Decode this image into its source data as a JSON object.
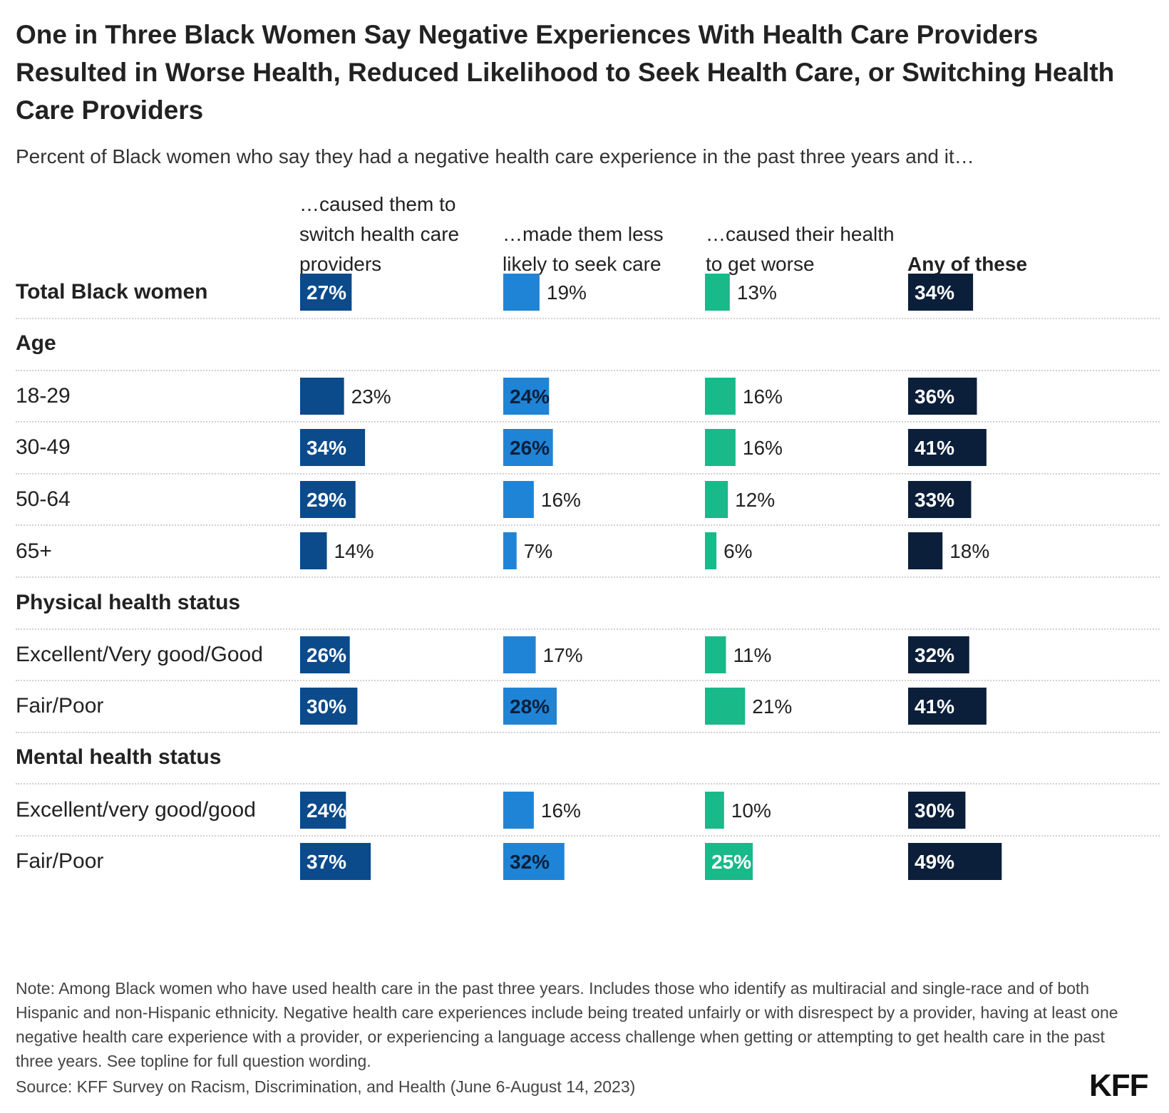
{
  "title": "One in Three Black Women Say Negative Experiences With Health Care Providers Resulted in Worse Health, Reduced Likelihood to Seek Health Care, or Switching Health Care Providers",
  "subtitle": "Percent of Black women who say they had a negative health care experience in the past three years and it…",
  "columns": [
    "…caused them to switch health care providers",
    "…made them less likely to seek care",
    "…caused their health to get worse",
    "Any of these"
  ],
  "groups": {
    "age": "Age",
    "physical": "Physical health status",
    "mental": "Mental health status"
  },
  "note": "Note: Among Black women who have used health care in the past three years. Includes those who identify as multiracial and single-race and of both Hispanic and non-Hispanic ethnicity. Negative health care experiences include being treated unfairly or with disrespect by a provider, having at least one negative health care experience with a provider, or experiencing a language access challenge when getting or attempting to get health care in the past three years. See topline for full question wording.",
  "source": "Source: KFF Survey on Racism, Discrimination, and Health (June 6-August 14, 2023)",
  "logo": "KFF",
  "colors": {
    "switch": "#0b4a8b",
    "seek": "#1f84d6",
    "worse": "#19b98a",
    "any": "#0b1f3a"
  },
  "chart_data": {
    "type": "bar",
    "orientation": "horizontal",
    "categories": [
      "Total Black women",
      "18-29",
      "30-49",
      "50-64",
      "65+",
      "Excellent/Very good/Good",
      "Fair/Poor",
      "Excellent/very good/good",
      "Fair/Poor"
    ],
    "series": [
      {
        "name": "…caused them to switch health care providers",
        "values": [
          27,
          23,
          34,
          29,
          14,
          26,
          30,
          24,
          37
        ]
      },
      {
        "name": "…made them less likely to seek care",
        "values": [
          19,
          24,
          26,
          16,
          7,
          17,
          28,
          16,
          32
        ]
      },
      {
        "name": "…caused their health to get worse",
        "values": [
          13,
          16,
          16,
          12,
          6,
          11,
          21,
          10,
          25
        ]
      },
      {
        "name": "Any of these",
        "values": [
          34,
          36,
          41,
          33,
          18,
          32,
          41,
          30,
          49
        ]
      }
    ],
    "unit": "%",
    "title": "One in Three Black Women Say Negative Experiences With Health Care Providers Resulted in Worse Health, Reduced Likelihood to Seek Health Care, or Switching Health Care Providers",
    "subtitle": "Percent of Black women who say they had a negative health care experience in the past three years and it…",
    "grid": false,
    "legend": "column headers"
  }
}
